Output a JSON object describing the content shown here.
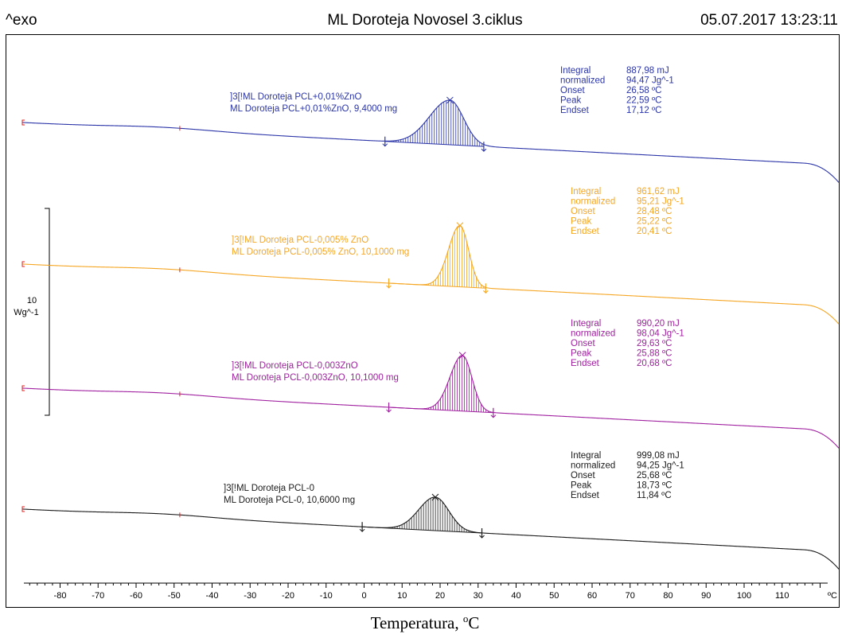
{
  "header": {
    "left": "^exo",
    "title": "ML Doroteja Novosel 3.ciklus",
    "datetime": "05.07.2017 13:23:11"
  },
  "scale_bar": {
    "value": "10",
    "unit": "Wg^-1"
  },
  "axis": {
    "caption_main": "Temperatura, ",
    "caption_sup": "o",
    "caption_unit": "C",
    "unit_label": "ºC"
  },
  "chart_data": {
    "type": "line",
    "title": "ML Doroteja Novosel 3.ciklus",
    "xlabel": "Temperatura, ºC",
    "ylabel": "^exo",
    "xlim": [
      -95,
      121
    ],
    "grid": false,
    "x_ticks": [
      -80,
      -70,
      -60,
      -50,
      -40,
      -30,
      -20,
      -10,
      0,
      10,
      20,
      30,
      40,
      50,
      60,
      70,
      80,
      90,
      100,
      110
    ],
    "series": [
      {
        "name": "ML Doroteja PCL+0,01%ZnO, 9,4000 mg",
        "label_line1": "]3[!ML Doroteja PCL+0,01%ZnO",
        "label_line2": "ML Doroteja PCL+0,01%ZnO, 9,4000 mg",
        "color": "#2b35a8",
        "limits": [
          5.5,
          31.5
        ],
        "peak_x": 22.59,
        "results": [
          {
            "label": "Integral",
            "value": "887,98 mJ"
          },
          {
            "label": "  normalized",
            "value": "94,47 Jg^-1"
          },
          {
            "label": "Onset",
            "value": "26,58 ºC"
          },
          {
            "label": "Peak",
            "value": "22,59 ºC"
          },
          {
            "label": "Endset",
            "value": "17,12 ºC"
          }
        ]
      },
      {
        "name": "ML Doroteja PCL-0,005% ZnO, 10,1000 mg",
        "label_line1": "]3[!ML Doroteja PCL-0,005% ZnO",
        "label_line2": "ML Doroteja PCL-0,005% ZnO, 10,1000 mg",
        "color": "#f5a623",
        "limits": [
          6.5,
          32
        ],
        "peak_x": 25.22,
        "results": [
          {
            "label": "Integral",
            "value": "961,62 mJ"
          },
          {
            "label": "  normalized",
            "value": "95,21 Jg^-1"
          },
          {
            "label": "Onset",
            "value": "28,48 ºC"
          },
          {
            "label": "Peak",
            "value": "25,22 ºC"
          },
          {
            "label": "Endset",
            "value": "20,41 ºC"
          }
        ]
      },
      {
        "name": "ML Doroteja PCL-0,003ZnO, 10,1000 mg",
        "label_line1": "]3[!ML Doroteja PCL-0,003ZnO",
        "label_line2": "ML Doroteja PCL-0,003ZnO, 10,1000 mg",
        "color": "#a020a0",
        "limits": [
          6.5,
          34
        ],
        "peak_x": 25.88,
        "results": [
          {
            "label": "Integral",
            "value": "990,20 mJ"
          },
          {
            "label": "  normalized",
            "value": "98,04 Jg^-1"
          },
          {
            "label": "Onset",
            "value": "29,63 ºC"
          },
          {
            "label": "Peak",
            "value": "25,88 ºC"
          },
          {
            "label": "Endset",
            "value": "20,68 ºC"
          }
        ]
      },
      {
        "name": "ML Doroteja PCL-0, 10,6000 mg",
        "label_line1": "]3[!ML Doroteja PCL-0",
        "label_line2": "ML Doroteja PCL-0, 10,6000 mg",
        "color": "#1a1a1a",
        "limits": [
          -0.5,
          31
        ],
        "peak_x": 18.73,
        "results": [
          {
            "label": "Integral",
            "value": "999,08 mJ"
          },
          {
            "label": "  normalized",
            "value": "94,25 Jg^-1"
          },
          {
            "label": "Onset",
            "value": "25,68 ºC"
          },
          {
            "label": "Peak",
            "value": "18,73 ºC"
          },
          {
            "label": "Endset",
            "value": "11,84 ºC"
          }
        ]
      }
    ]
  }
}
